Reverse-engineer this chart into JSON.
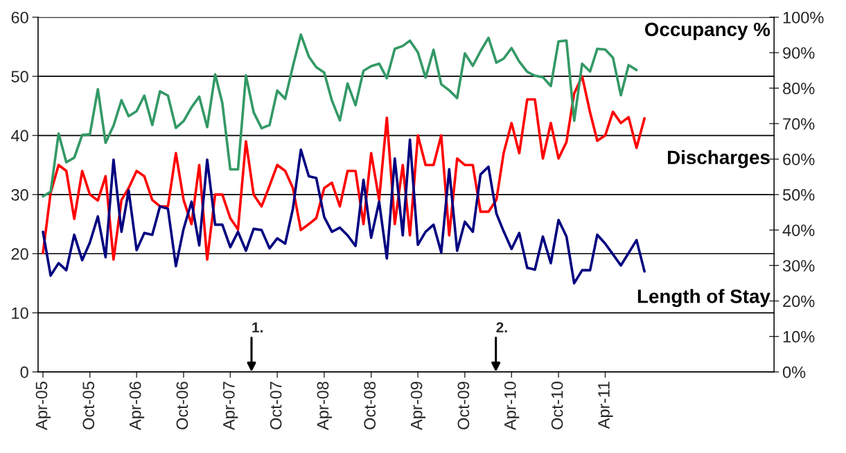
{
  "chart_data": {
    "type": "line",
    "x": [
      "2005-04",
      "2005-05",
      "2005-06",
      "2005-07",
      "2005-08",
      "2005-09",
      "2005-10",
      "2005-11",
      "2005-12",
      "2006-01",
      "2006-02",
      "2006-03",
      "2006-04",
      "2006-05",
      "2006-06",
      "2006-07",
      "2006-08",
      "2006-09",
      "2006-10",
      "2006-11",
      "2006-12",
      "2007-01",
      "2007-02",
      "2007-03",
      "2007-04",
      "2007-05",
      "2007-06",
      "2007-07",
      "2007-08",
      "2007-09",
      "2007-10",
      "2007-11",
      "2007-12",
      "2008-01",
      "2008-02",
      "2008-03",
      "2008-04",
      "2008-05",
      "2008-06",
      "2008-07",
      "2008-08",
      "2008-09",
      "2008-10",
      "2008-11",
      "2008-12",
      "2009-01",
      "2009-02",
      "2009-03",
      "2009-04",
      "2009-05",
      "2009-06",
      "2009-07",
      "2009-08",
      "2009-09",
      "2009-10",
      "2009-11",
      "2009-12",
      "2010-01",
      "2010-02",
      "2010-03",
      "2010-04",
      "2010-05",
      "2010-06",
      "2010-07",
      "2010-08",
      "2010-09",
      "2010-10",
      "2010-11",
      "2010-12",
      "2011-01",
      "2011-02",
      "2011-03",
      "2011-04",
      "2011-05",
      "2011-06",
      "2011-07",
      "2011-08",
      "2011-09"
    ],
    "series": [
      {
        "name": "Occupancy %",
        "color": "#339966",
        "axis": "y2",
        "x": [
          "2005-04",
          "2005-05",
          "2005-06",
          "2005-07",
          "2005-08",
          "2005-09",
          "2005-10",
          "2005-11",
          "2005-12",
          "2006-01",
          "2006-02",
          "2006-03",
          "2006-04",
          "2006-05",
          "2006-06",
          "2006-07",
          "2006-08",
          "2006-09",
          "2006-10",
          "2006-11",
          "2006-12",
          "2007-01",
          "2007-02",
          "2007-03",
          "2007-04",
          "2007-05",
          "2007-06",
          "2007-07",
          "2007-08",
          "2007-09",
          "2007-10",
          "2007-11",
          "2007-12",
          "2008-01",
          "2008-02",
          "2008-03",
          "2008-04",
          "2008-05",
          "2008-06",
          "2008-07",
          "2008-08",
          "2008-09",
          "2008-10",
          "2008-11",
          "2008-12",
          "2009-01",
          "2009-02",
          "2009-03",
          "2009-04",
          "2009-05",
          "2009-06",
          "2009-07",
          "2009-08",
          "2009-09",
          "2009-10",
          "2009-11",
          "2009-12",
          "2010-01",
          "2010-02",
          "2010-03",
          "2010-04",
          "2010-05",
          "2010-06",
          "2010-07",
          "2010-08",
          "2010-09",
          "2010-10",
          "2010-11",
          "2010-12",
          "2011-01",
          "2011-02",
          "2011-03",
          "2011-04",
          "2011-05",
          "2011-06",
          "2011-07",
          "2011-08"
        ],
        "values": [
          49.5,
          50.8,
          67.2,
          59.1,
          60.4,
          66.8,
          67.0,
          79.7,
          64.6,
          69.4,
          76.6,
          72.1,
          73.5,
          77.9,
          69.6,
          79.1,
          77.9,
          68.8,
          70.7,
          74.6,
          77.6,
          69.0,
          83.9,
          75.8,
          57.1,
          57.1,
          83.6,
          73.2,
          68.7,
          69.6,
          79.3,
          77.0,
          86.2,
          95.1,
          88.9,
          85.9,
          84.4,
          76.5,
          70.9,
          81.3,
          75.2,
          84.9,
          86.2,
          86.9,
          82.8,
          91.1,
          91.9,
          93.4,
          90.1,
          83.0,
          90.8,
          81.1,
          79.4,
          77.2,
          89.8,
          86.3,
          90.4,
          94.2,
          87.2,
          88.3,
          91.3,
          87.5,
          84.6,
          83.5,
          83.1,
          80.6,
          93.2,
          93.4,
          70.8,
          86.9,
          84.7,
          91.1,
          90.9,
          88.6,
          78.0,
          86.5,
          85.1
        ]
      },
      {
        "name": "Discharges",
        "color": "#ff0000",
        "values": [
          20.1,
          30.3,
          35.0,
          34.0,
          25.9,
          34.0,
          30.0,
          29.0,
          33.1,
          19.0,
          29.1,
          31.1,
          34.0,
          33.1,
          29.1,
          28.0,
          28.0,
          37.0,
          29.1,
          25.0,
          35.0,
          19.0,
          30.0,
          30.0,
          26.0,
          24.1,
          39.0,
          30.0,
          28.0,
          31.5,
          35.0,
          34.0,
          31.1,
          24.0,
          25.0,
          26.0,
          31.1,
          32.0,
          28.0,
          34.0,
          34.0,
          25.0,
          37.0,
          29.1,
          43.0,
          25.0,
          35.0,
          23.1,
          40.0,
          35.0,
          35.0,
          40.0,
          23.1,
          36.1,
          35.0,
          35.0,
          27.1,
          27.1,
          29.1,
          37.0,
          42.1,
          37.0,
          46.1,
          46.1,
          36.1,
          42.1,
          36.1,
          38.9,
          47.1,
          50.0,
          43.9,
          39.1,
          40.0,
          44.0,
          42.1,
          43.1,
          37.9,
          42.9
        ]
      },
      {
        "name": "Length of Stay",
        "color": "#000080",
        "values": [
          23.7,
          16.3,
          18.4,
          17.2,
          23.2,
          18.9,
          21.9,
          26.3,
          19.4,
          35.9,
          23.7,
          30.7,
          20.6,
          23.5,
          23.2,
          28.0,
          27.6,
          17.9,
          24.2,
          28.8,
          21.4,
          35.9,
          24.9,
          24.9,
          21.1,
          23.7,
          20.5,
          24.2,
          24.0,
          20.9,
          22.6,
          21.7,
          27.6,
          37.6,
          33.1,
          32.8,
          26.2,
          23.7,
          24.4,
          23.1,
          21.3,
          32.5,
          22.7,
          28.8,
          19.2,
          36.1,
          23.1,
          39.3,
          21.5,
          23.7,
          24.9,
          20.2,
          34.3,
          20.5,
          25.4,
          23.7,
          33.4,
          34.7,
          26.8,
          23.8,
          20.8,
          23.5,
          17.6,
          17.3,
          22.9,
          18.4,
          25.7,
          22.9,
          15.0,
          17.2,
          17.2,
          23.2,
          21.7,
          19.9,
          18.0,
          20.1,
          22.3,
          17.0
        ]
      }
    ],
    "xlim": [
      "2005-03-13",
      "2013-01-18"
    ],
    "xticks": [
      {
        "value": "2005-04",
        "label": "Apr-05"
      },
      {
        "value": "2005-10",
        "label": "Oct-05"
      },
      {
        "value": "2006-04",
        "label": "Apr-06"
      },
      {
        "value": "2006-10",
        "label": "Oct-06"
      },
      {
        "value": "2007-04",
        "label": "Apr-07"
      },
      {
        "value": "2007-10",
        "label": "Oct-07"
      },
      {
        "value": "2008-04",
        "label": "Apr-08"
      },
      {
        "value": "2008-10",
        "label": "Oct-08"
      },
      {
        "value": "2009-04",
        "label": "Apr-09"
      },
      {
        "value": "2009-10",
        "label": "Oct-09"
      },
      {
        "value": "2010-04",
        "label": "Apr-10"
      },
      {
        "value": "2010-10",
        "label": "Oct-10"
      },
      {
        "value": "2011-04",
        "label": "Apr-11"
      }
    ],
    "ylim": [
      0,
      60
    ],
    "yticks": [
      0,
      10,
      20,
      30,
      40,
      50,
      60
    ],
    "y2lim": [
      0,
      100
    ],
    "y2ticks": [
      {
        "value": 0,
        "label": "0%"
      },
      {
        "value": 10,
        "label": "10%"
      },
      {
        "value": 20,
        "label": "20%"
      },
      {
        "value": 30,
        "label": "30%"
      },
      {
        "value": 40,
        "label": "40%"
      },
      {
        "value": 50,
        "label": "50%"
      },
      {
        "value": 60,
        "label": "60%"
      },
      {
        "value": 70,
        "label": "70%"
      },
      {
        "value": 80,
        "label": "80%"
      },
      {
        "value": 90,
        "label": "90%"
      },
      {
        "value": 100,
        "label": "100%"
      }
    ],
    "grid": "y",
    "line_style": "solid",
    "marker": "none",
    "annotations": [
      "1.",
      "2."
    ]
  }
}
